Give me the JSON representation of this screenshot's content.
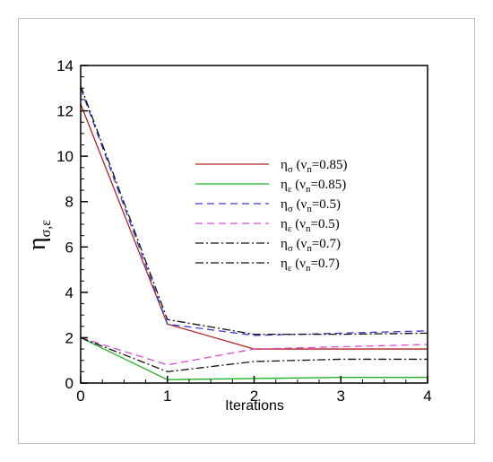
{
  "chart_data": {
    "type": "line",
    "xlabel": "Iterations",
    "ylabel": {
      "main": "η",
      "sub": "σ,ε"
    },
    "xlim": [
      0,
      4
    ],
    "ylim": [
      0,
      14
    ],
    "xticks": [
      0,
      1,
      2,
      3,
      4
    ],
    "yticks": [
      0,
      2,
      4,
      6,
      8,
      10,
      12,
      14
    ],
    "grid": false,
    "legend_position": "center-right",
    "x": [
      0,
      1,
      2,
      3,
      4
    ],
    "series": [
      {
        "name": "ησ (νn=0.85)",
        "symbol": "η",
        "sub": "σ",
        "param": "ν",
        "param_sub": "n",
        "value_text": "=0.85)",
        "color": "#b22222",
        "dash": "solid",
        "values": [
          12.3,
          2.6,
          1.5,
          1.5,
          1.5
        ]
      },
      {
        "name": "ηε (νn=0.85)",
        "symbol": "η",
        "sub": "ε",
        "param": "ν",
        "param_sub": "n",
        "value_text": "=0.85)",
        "color": "#22b022",
        "dash": "solid",
        "values": [
          2.0,
          0.15,
          0.2,
          0.25,
          0.25
        ]
      },
      {
        "name": "ησ (νn=0.5)",
        "symbol": "η",
        "sub": "σ",
        "param": "ν",
        "param_sub": "n",
        "value_text": "=0.5)",
        "color": "#3a3ad8",
        "dash": "dash",
        "values": [
          13.0,
          2.6,
          2.1,
          2.2,
          2.3
        ]
      },
      {
        "name": "ηε (νn=0.5)",
        "symbol": "η",
        "sub": "ε",
        "param": "ν",
        "param_sub": "n",
        "value_text": "=0.5)",
        "color": "#d84ad8",
        "dash": "dash",
        "values": [
          2.0,
          0.8,
          1.5,
          1.6,
          1.7
        ]
      },
      {
        "name": "ησ (νn=0.7)",
        "symbol": "η",
        "sub": "σ",
        "param": "ν",
        "param_sub": "n",
        "value_text": "=0.7)",
        "color": "#111111",
        "dash": "dashdot",
        "values": [
          13.1,
          2.8,
          2.15,
          2.15,
          2.2
        ]
      },
      {
        "name": "ηε (νn=0.7)",
        "symbol": "η",
        "sub": "ε",
        "param": "ν",
        "param_sub": "n",
        "value_text": "=0.7)",
        "color": "#111111",
        "dash": "dashdot",
        "values": [
          2.0,
          0.5,
          0.95,
          1.05,
          1.05
        ]
      }
    ]
  }
}
